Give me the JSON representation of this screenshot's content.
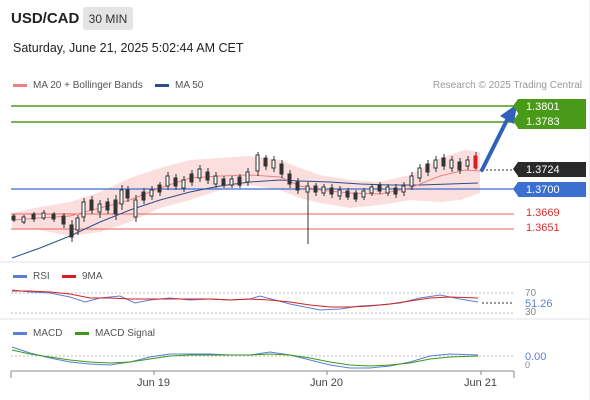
{
  "header": {
    "symbol": "USD/CAD",
    "timeframe": "30 MIN",
    "datetime": "Saturday, June 21, 2025 5:02:44 AM CET"
  },
  "legend": [
    {
      "label": "MA 20 + Bollinger Bands",
      "color": "#f08080"
    },
    {
      "label": "MA 50",
      "color": "#2b4f8a"
    }
  ],
  "credit": "Research © 2025 Trading Central",
  "price_levels": {
    "target1": "1.3801",
    "target2": "1.3783",
    "last": "1.3724",
    "pivot": "1.3700",
    "support1": "1.3669",
    "support2": "1.3651"
  },
  "rsi_panel": {
    "legend": [
      {
        "label": "RSI",
        "color": "#5b7fd6"
      },
      {
        "label": "9MA",
        "color": "#d62020"
      }
    ],
    "value": "51.26",
    "level_hi": "70",
    "level_lo": "30"
  },
  "macd_panel": {
    "legend": [
      {
        "label": "MACD",
        "color": "#5b7fd6"
      },
      {
        "label": "MACD Signal",
        "color": "#3a9a18"
      }
    ],
    "value": "0.00",
    "zero": "0"
  },
  "x_axis": [
    "Jun 19",
    "Jun 20",
    "Jun 21"
  ],
  "colors": {
    "green_level": "#4a9a1a",
    "blue_level": "#3b6fd0",
    "red_level": "#e86060",
    "last_tag": "#2a2a2a",
    "arrow": "#2f62b8"
  }
}
